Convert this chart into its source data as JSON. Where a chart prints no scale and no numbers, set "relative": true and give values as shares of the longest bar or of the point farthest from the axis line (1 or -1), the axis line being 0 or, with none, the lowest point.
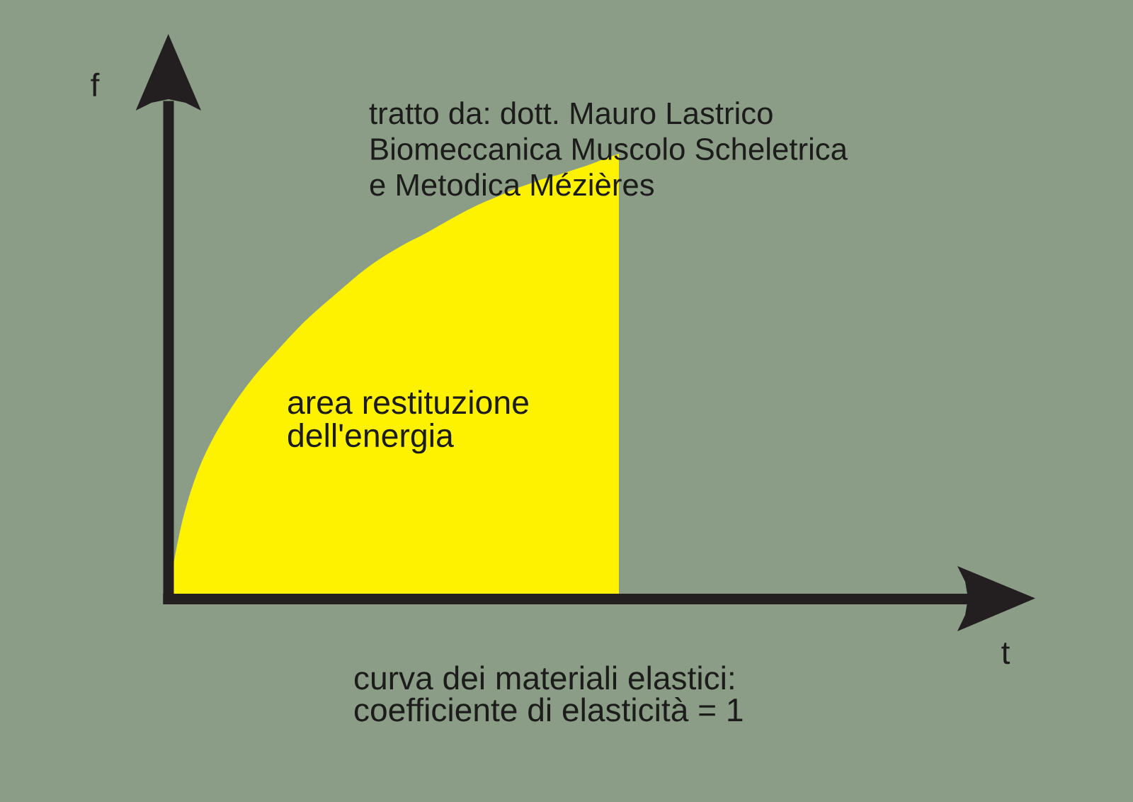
{
  "chart_data": {
    "type": "area",
    "relative": true,
    "xlabel": "t",
    "ylabel": "f",
    "color": "#fff200",
    "categories": [
      null,
      null,
      null,
      null,
      null,
      null,
      null,
      null,
      null,
      null,
      null,
      null,
      null,
      null,
      null,
      null,
      null,
      null,
      null,
      null,
      null,
      null,
      null,
      null,
      null,
      null,
      null,
      null,
      null,
      null,
      null,
      null,
      null,
      null,
      null,
      null,
      null,
      null,
      null,
      null,
      null,
      null,
      null,
      null,
      null,
      null,
      null,
      null,
      null,
      null,
      null,
      null,
      null,
      null
    ],
    "values": [
      0.024,
      0.186,
      0.291,
      0.363,
      0.42,
      0.469,
      0.512,
      0.549,
      0.586,
      0.621,
      0.652,
      0.681,
      0.71,
      0.738,
      0.762,
      0.783,
      0.802,
      0.819,
      0.838,
      0.857,
      0.875,
      0.891,
      0.905,
      0.92,
      0.932,
      0.944,
      0.953,
      0.964,
      0.975,
      0.988,
      1,
      null,
      null,
      null,
      null,
      null,
      null,
      null,
      null,
      null,
      null,
      null,
      null,
      null,
      null,
      null,
      null,
      null,
      null,
      null,
      null,
      null,
      null,
      null
    ],
    "annotations": [
      "tratto da: dott. Mauro Lastrico\nBiomeccanica Muscolo Scheletrica\ne Metodica Mézières",
      "area restituzione\ndell'energia",
      "curva dei materiali elastici:\ncoefficiente di elasticità = 1"
    ]
  }
}
